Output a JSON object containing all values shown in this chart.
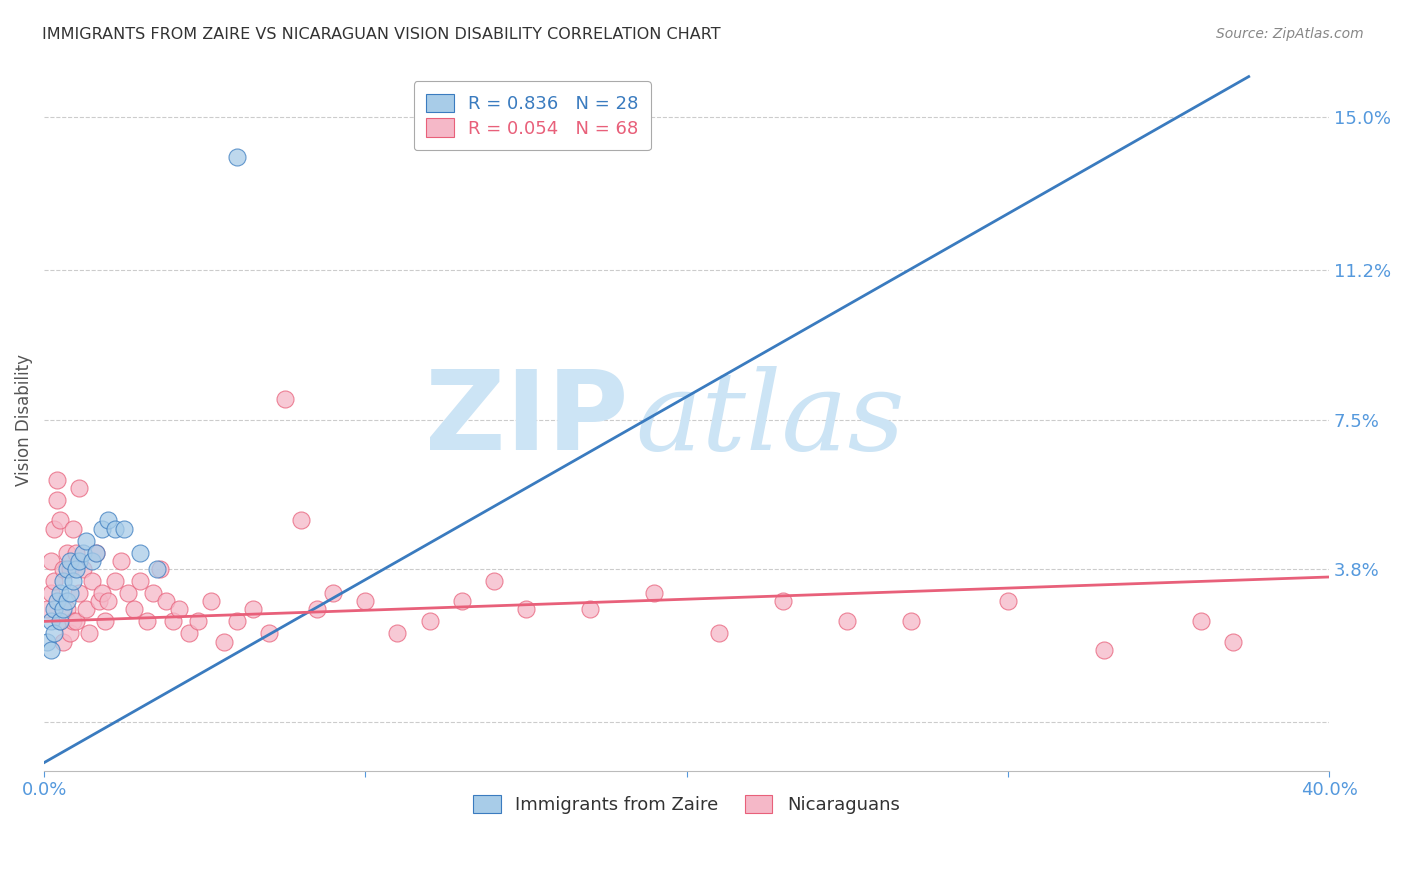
{
  "title": "IMMIGRANTS FROM ZAIRE VS NICARAGUAN VISION DISABILITY CORRELATION CHART",
  "source": "Source: ZipAtlas.com",
  "ylabel": "Vision Disability",
  "right_ytick_values": [
    0.0,
    0.038,
    0.075,
    0.112,
    0.15
  ],
  "right_ytick_labels": [
    "",
    "3.8%",
    "7.5%",
    "11.2%",
    "15.0%"
  ],
  "xlim": [
    0.0,
    0.4
  ],
  "ylim": [
    -0.012,
    0.162
  ],
  "blue_R": 0.836,
  "blue_N": 28,
  "pink_R": 0.054,
  "pink_N": 68,
  "blue_color": "#a8cce8",
  "pink_color": "#f5b8c8",
  "blue_line_color": "#3a7bbf",
  "pink_line_color": "#e8607a",
  "legend_label_blue": "Immigrants from Zaire",
  "legend_label_pink": "Nicaraguans",
  "blue_scatter_x": [
    0.001,
    0.002,
    0.002,
    0.003,
    0.003,
    0.004,
    0.005,
    0.005,
    0.006,
    0.006,
    0.007,
    0.007,
    0.008,
    0.008,
    0.009,
    0.01,
    0.011,
    0.012,
    0.013,
    0.015,
    0.016,
    0.018,
    0.02,
    0.022,
    0.025,
    0.03,
    0.035,
    0.06
  ],
  "blue_scatter_y": [
    0.02,
    0.018,
    0.025,
    0.022,
    0.028,
    0.03,
    0.025,
    0.032,
    0.028,
    0.035,
    0.03,
    0.038,
    0.032,
    0.04,
    0.035,
    0.038,
    0.04,
    0.042,
    0.045,
    0.04,
    0.042,
    0.048,
    0.05,
    0.048,
    0.048,
    0.042,
    0.038,
    0.14
  ],
  "pink_scatter_x": [
    0.001,
    0.002,
    0.002,
    0.003,
    0.003,
    0.004,
    0.004,
    0.005,
    0.005,
    0.006,
    0.006,
    0.007,
    0.007,
    0.008,
    0.008,
    0.009,
    0.009,
    0.01,
    0.01,
    0.011,
    0.011,
    0.012,
    0.013,
    0.014,
    0.015,
    0.016,
    0.017,
    0.018,
    0.019,
    0.02,
    0.022,
    0.024,
    0.026,
    0.028,
    0.03,
    0.032,
    0.034,
    0.036,
    0.038,
    0.04,
    0.042,
    0.045,
    0.048,
    0.052,
    0.056,
    0.06,
    0.065,
    0.07,
    0.075,
    0.08,
    0.085,
    0.09,
    0.1,
    0.11,
    0.12,
    0.13,
    0.14,
    0.15,
    0.17,
    0.19,
    0.21,
    0.23,
    0.25,
    0.27,
    0.3,
    0.33,
    0.36,
    0.37
  ],
  "pink_scatter_y": [
    0.028,
    0.032,
    0.04,
    0.035,
    0.048,
    0.055,
    0.06,
    0.05,
    0.025,
    0.038,
    0.02,
    0.042,
    0.028,
    0.022,
    0.038,
    0.025,
    0.048,
    0.042,
    0.025,
    0.032,
    0.058,
    0.038,
    0.028,
    0.022,
    0.035,
    0.042,
    0.03,
    0.032,
    0.025,
    0.03,
    0.035,
    0.04,
    0.032,
    0.028,
    0.035,
    0.025,
    0.032,
    0.038,
    0.03,
    0.025,
    0.028,
    0.022,
    0.025,
    0.03,
    0.02,
    0.025,
    0.028,
    0.022,
    0.08,
    0.05,
    0.028,
    0.032,
    0.03,
    0.022,
    0.025,
    0.03,
    0.035,
    0.028,
    0.028,
    0.032,
    0.022,
    0.03,
    0.025,
    0.025,
    0.03,
    0.018,
    0.025,
    0.02
  ],
  "blue_line_x0": 0.0,
  "blue_line_y0": -0.01,
  "blue_line_x1": 0.375,
  "blue_line_y1": 0.16,
  "pink_line_x0": 0.0,
  "pink_line_y0": 0.025,
  "pink_line_x1": 0.4,
  "pink_line_y1": 0.036,
  "watermark_text_zip": "ZIP",
  "watermark_text_atlas": "atlas",
  "watermark_color": "#cce4f5",
  "background_color": "#ffffff",
  "grid_color": "#cccccc",
  "tick_color": "#5599dd",
  "title_color": "#333333",
  "source_color": "#888888",
  "ylabel_color": "#555555"
}
